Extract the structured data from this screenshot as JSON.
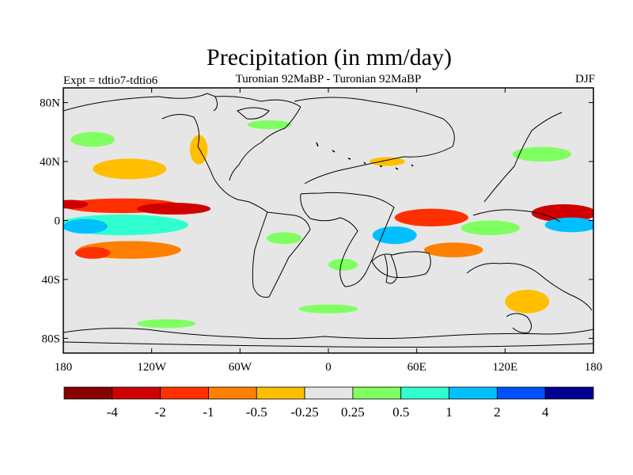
{
  "chart_data": {
    "type": "heatmap",
    "title": "Precipitation (in mm/day)",
    "subtitle_left": "Expt = tdtio7-tdtio6",
    "subtitle_center": "Turonian  92MaBP - Turonian  92MaBP",
    "subtitle_right": "DJF",
    "x_axis": {
      "range": [
        -180,
        180
      ],
      "ticks": [
        {
          "value": -180,
          "label": "180"
        },
        {
          "value": -120,
          "label": "120W"
        },
        {
          "value": -60,
          "label": "60W"
        },
        {
          "value": 0,
          "label": "0"
        },
        {
          "value": 60,
          "label": "60E"
        },
        {
          "value": 120,
          "label": "120E"
        },
        {
          "value": 180,
          "label": "180"
        }
      ]
    },
    "y_axis": {
      "range": [
        -90,
        90
      ],
      "ticks": [
        {
          "value": 80,
          "label": "80N"
        },
        {
          "value": 40,
          "label": "40N"
        },
        {
          "value": 0,
          "label": "0"
        },
        {
          "value": -40,
          "label": "40S"
        },
        {
          "value": -80,
          "label": "80S"
        }
      ]
    },
    "colorbar": {
      "colors": [
        "#880000",
        "#d00000",
        "#ff3000",
        "#ff7f00",
        "#ffbf00",
        "#e6e6e6",
        "#80ff60",
        "#30ffd0",
        "#00c0ff",
        "#0050ff",
        "#000090"
      ],
      "boundaries": [
        "-4",
        "-2",
        "-1",
        "-0.5",
        "-0.25",
        "0.25",
        "0.5",
        "1",
        "2",
        "4"
      ]
    },
    "anomaly_regions": [
      {
        "lon": -140,
        "lat": 10,
        "rx": 40,
        "ry": 5,
        "value": -1.5
      },
      {
        "lon": -105,
        "lat": 8,
        "rx": 25,
        "ry": 4,
        "value": -2.5
      },
      {
        "lon": -175,
        "lat": 11,
        "rx": 12,
        "ry": 3,
        "value": -3
      },
      {
        "lon": -140,
        "lat": -3,
        "rx": 45,
        "ry": 7,
        "value": 0.7
      },
      {
        "lon": -165,
        "lat": -4,
        "rx": 15,
        "ry": 5,
        "value": 1.5
      },
      {
        "lon": -135,
        "lat": -20,
        "rx": 35,
        "ry": 6,
        "value": -0.8
      },
      {
        "lon": -160,
        "lat": -22,
        "rx": 12,
        "ry": 4,
        "value": -1.5
      },
      {
        "lon": -135,
        "lat": 35,
        "rx": 25,
        "ry": 7,
        "value": -0.35
      },
      {
        "lon": -160,
        "lat": 55,
        "rx": 15,
        "ry": 5,
        "value": 0.35
      },
      {
        "lon": -88,
        "lat": 48,
        "rx": 6,
        "ry": 10,
        "value": -0.4
      },
      {
        "lon": 70,
        "lat": 2,
        "rx": 25,
        "ry": 6,
        "value": -1.2
      },
      {
        "lon": 45,
        "lat": -10,
        "rx": 15,
        "ry": 6,
        "value": 1.5
      },
      {
        "lon": 85,
        "lat": -20,
        "rx": 20,
        "ry": 5,
        "value": -0.8
      },
      {
        "lon": 110,
        "lat": -5,
        "rx": 20,
        "ry": 5,
        "value": 0.4
      },
      {
        "lon": 160,
        "lat": 5,
        "rx": 22,
        "ry": 6,
        "value": -3
      },
      {
        "lon": 165,
        "lat": -3,
        "rx": 18,
        "ry": 5,
        "value": 1.5
      },
      {
        "lon": 135,
        "lat": -55,
        "rx": 15,
        "ry": 8,
        "value": -0.4
      },
      {
        "lon": 145,
        "lat": 45,
        "rx": 20,
        "ry": 5,
        "value": 0.35
      },
      {
        "lon": 40,
        "lat": 40,
        "rx": 12,
        "ry": 3,
        "value": -0.35
      },
      {
        "lon": -30,
        "lat": -12,
        "rx": 12,
        "ry": 4,
        "value": 0.4
      },
      {
        "lon": 0,
        "lat": -60,
        "rx": 20,
        "ry": 3,
        "value": 0.35
      },
      {
        "lon": -110,
        "lat": -70,
        "rx": 20,
        "ry": 3,
        "value": 0.35
      },
      {
        "lon": -40,
        "lat": 65,
        "rx": 15,
        "ry": 3,
        "value": 0.35
      },
      {
        "lon": 10,
        "lat": -30,
        "rx": 10,
        "ry": 4,
        "value": 0.35
      }
    ]
  }
}
